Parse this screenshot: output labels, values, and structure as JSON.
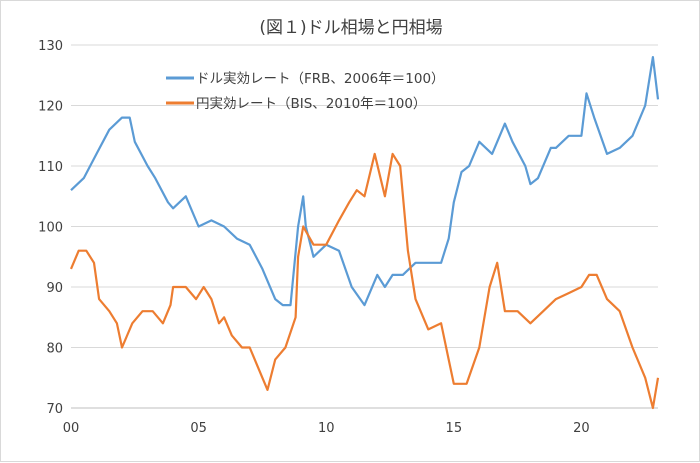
{
  "chart_data": {
    "type": "line",
    "title": "(図１)ドル相場と円相場",
    "xlabel": "",
    "ylabel": "",
    "xlim": [
      2000,
      2023
    ],
    "ylim": [
      70,
      130
    ],
    "x_ticks": [
      2000,
      2005,
      2010,
      2015,
      2020
    ],
    "x_tick_labels": [
      "00",
      "05",
      "10",
      "15",
      "20"
    ],
    "y_ticks": [
      70,
      80,
      90,
      100,
      110,
      120,
      130
    ],
    "y_tick_labels": [
      "70",
      "80",
      "90",
      "100",
      "110",
      "120",
      "130"
    ],
    "grid": "horizontal",
    "legend_position": "top-left",
    "series": [
      {
        "name": "ドル実効レート（FRB、2006年＝100）",
        "color": "#5b9bd5",
        "x": [
          2000,
          2000.5,
          2001,
          2001.5,
          2002,
          2002.3,
          2002.5,
          2003,
          2003.3,
          2003.8,
          2004,
          2004.5,
          2005,
          2005.5,
          2006,
          2006.5,
          2007,
          2007.5,
          2008,
          2008.3,
          2008.6,
          2008.9,
          2009.1,
          2009.2,
          2009.5,
          2010,
          2010.5,
          2011,
          2011.5,
          2012,
          2012.3,
          2012.6,
          2013,
          2013.5,
          2014,
          2014.5,
          2014.8,
          2015,
          2015.3,
          2015.6,
          2016,
          2016.5,
          2017,
          2017.3,
          2017.8,
          2018,
          2018.3,
          2018.8,
          2019,
          2019.5,
          2020,
          2020.2,
          2020.5,
          2021,
          2021.5,
          2022,
          2022.5,
          2022.8,
          2023
        ],
        "values": [
          106,
          108,
          112,
          116,
          118,
          118,
          114,
          110,
          108,
          104,
          103,
          105,
          100,
          101,
          100,
          98,
          97,
          93,
          88,
          87,
          87,
          100,
          105,
          100,
          95,
          97,
          96,
          90,
          87,
          92,
          90,
          92,
          92,
          94,
          94,
          94,
          98,
          104,
          109,
          110,
          114,
          112,
          117,
          114,
          110,
          107,
          108,
          113,
          113,
          115,
          115,
          122,
          118,
          112,
          113,
          115,
          120,
          128,
          121
        ]
      },
      {
        "name": "円実効レート（BIS、2010年＝100）",
        "color": "#ed7d31",
        "x": [
          2000,
          2000.3,
          2000.6,
          2000.9,
          2001.1,
          2001.5,
          2001.8,
          2002,
          2002.4,
          2002.8,
          2003.2,
          2003.6,
          2003.9,
          2004,
          2004.5,
          2004.9,
          2005.2,
          2005.5,
          2005.8,
          2006,
          2006.3,
          2006.7,
          2007,
          2007.5,
          2007.7,
          2008,
          2008.4,
          2008.8,
          2008.9,
          2009.1,
          2009.5,
          2010,
          2010.5,
          2010.9,
          2011.2,
          2011.5,
          2011.9,
          2012.3,
          2012.6,
          2012.9,
          2013.2,
          2013.5,
          2014,
          2014.5,
          2014.8,
          2015,
          2015.5,
          2016,
          2016.4,
          2016.7,
          2017,
          2017.5,
          2018,
          2018.5,
          2019,
          2019.5,
          2020,
          2020.3,
          2020.6,
          2021,
          2021.5,
          2022,
          2022.5,
          2022.8,
          2023
        ],
        "values": [
          93,
          96,
          96,
          94,
          88,
          86,
          84,
          80,
          84,
          86,
          86,
          84,
          87,
          90,
          90,
          88,
          90,
          88,
          84,
          85,
          82,
          80,
          80,
          75,
          73,
          78,
          80,
          85,
          95,
          100,
          97,
          97,
          101,
          104,
          106,
          105,
          112,
          105,
          112,
          110,
          96,
          88,
          83,
          84,
          78,
          74,
          74,
          80,
          90,
          94,
          86,
          86,
          84,
          86,
          88,
          89,
          90,
          92,
          92,
          88,
          86,
          80,
          75,
          70,
          75
        ]
      }
    ]
  }
}
